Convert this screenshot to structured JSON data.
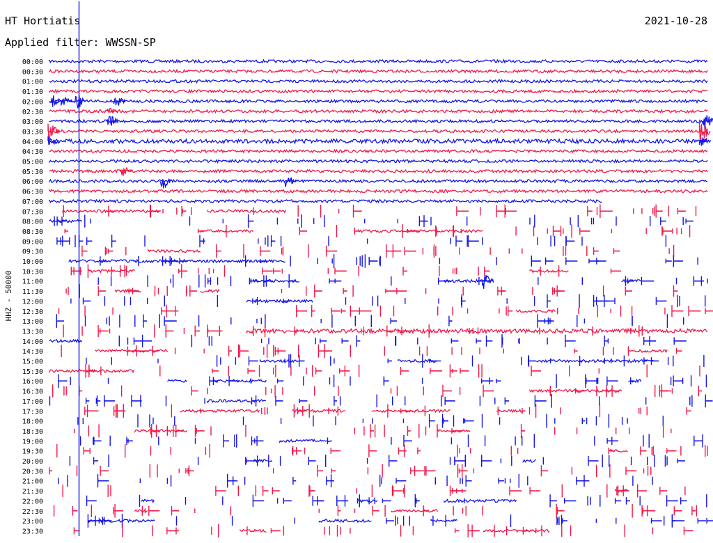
{
  "header": {
    "station": "HT Hortiatis",
    "date": "2021-10-28",
    "filter": "Applied filter: WWSSN-SP"
  },
  "y_axis_label": "HHZ - 50000",
  "colors": {
    "blue": "#1515e6",
    "red": "#f0184a",
    "background": "#ffffff"
  },
  "chart_data": {
    "type": "line",
    "title": "HT Hortiatis",
    "subtitle": "Applied filter: WWSSN-SP",
    "channel_label": "HHZ - 50000",
    "rows": [
      {
        "t": "00:00",
        "c": "blue",
        "a": 2,
        "s": [
          [
            0,
            1
          ]
        ]
      },
      {
        "t": "00:30",
        "c": "red",
        "a": 2,
        "s": [
          [
            0,
            1
          ]
        ]
      },
      {
        "t": "01:00",
        "c": "blue",
        "a": 2,
        "s": [
          [
            0,
            1
          ]
        ]
      },
      {
        "t": "01:30",
        "c": "red",
        "a": 2,
        "s": [
          [
            0,
            1
          ]
        ]
      },
      {
        "t": "02:00",
        "c": "blue",
        "a": 2,
        "s": [
          [
            0,
            1
          ]
        ],
        "e": [
          [
            0.005,
            9
          ],
          [
            0.02,
            7
          ],
          [
            0.04,
            14
          ],
          [
            0.1,
            9
          ]
        ]
      },
      {
        "t": "02:30",
        "c": "red",
        "a": 2,
        "s": [
          [
            0,
            1
          ]
        ],
        "e": [
          [
            0.09,
            5
          ]
        ]
      },
      {
        "t": "03:00",
        "c": "blue",
        "a": 2,
        "s": [
          [
            0,
            1
          ]
        ],
        "e": [
          [
            0.09,
            10
          ],
          [
            0.995,
            14
          ]
        ]
      },
      {
        "t": "03:30",
        "c": "red",
        "a": 2,
        "s": [
          [
            0,
            1
          ]
        ],
        "e": [
          [
            0.0,
            15
          ],
          [
            0.99,
            18
          ]
        ]
      },
      {
        "t": "04:00",
        "c": "blue",
        "a": 3,
        "s": [
          [
            0,
            1
          ]
        ],
        "e": [
          [
            0.0,
            8
          ],
          [
            0.99,
            9
          ]
        ]
      },
      {
        "t": "04:30",
        "c": "red",
        "a": 2,
        "s": [
          [
            0,
            1
          ]
        ]
      },
      {
        "t": "05:00",
        "c": "blue",
        "a": 2,
        "s": [
          [
            0,
            1
          ]
        ]
      },
      {
        "t": "05:30",
        "c": "red",
        "a": 2,
        "s": [
          [
            0,
            1
          ]
        ],
        "e": [
          [
            0.11,
            9
          ]
        ]
      },
      {
        "t": "06:00",
        "c": "blue",
        "a": 2,
        "s": [
          [
            0,
            1
          ]
        ],
        "e": [
          [
            0.17,
            14
          ],
          [
            0.36,
            8
          ]
        ]
      },
      {
        "t": "06:30",
        "c": "red",
        "a": 2,
        "s": [
          [
            0,
            1
          ]
        ]
      },
      {
        "t": "07:00",
        "c": "blue",
        "a": 2,
        "s": [
          [
            0,
            0.84
          ]
        ]
      },
      {
        "t": "07:30",
        "c": "red",
        "a": 2,
        "s": [
          [
            0.02,
            0.17
          ],
          [
            0.24,
            0.36
          ]
        ]
      },
      {
        "t": "08:00",
        "c": "blue",
        "a": 2,
        "s": [
          [
            0,
            0.05
          ]
        ]
      },
      {
        "t": "08:30",
        "c": "red",
        "a": 2,
        "s": [
          [
            0.23,
            0.31
          ],
          [
            0.47,
            0.66
          ]
        ]
      },
      {
        "t": "09:00",
        "c": "blue",
        "a": 2,
        "s": []
      },
      {
        "t": "09:30",
        "c": "red",
        "a": 2,
        "s": [
          [
            0.15,
            0.23
          ]
        ]
      },
      {
        "t": "10:00",
        "c": "blue",
        "a": 2,
        "s": [
          [
            0.03,
            0.36
          ]
        ]
      },
      {
        "t": "10:30",
        "c": "red",
        "a": 2,
        "s": [
          [
            0.06,
            0.13
          ],
          [
            0.73,
            0.79
          ]
        ]
      },
      {
        "t": "11:00",
        "c": "blue",
        "a": 2,
        "s": [
          [
            0.31,
            0.38
          ],
          [
            0.6,
            0.67
          ],
          [
            0.87,
            0.9
          ]
        ],
        "e": [
          [
            0.66,
            12
          ]
        ]
      },
      {
        "t": "11:30",
        "c": "red",
        "a": 2,
        "s": [
          [
            0.1,
            0.14
          ],
          [
            0.23,
            0.26
          ]
        ]
      },
      {
        "t": "12:00",
        "c": "blue",
        "a": 2,
        "s": [
          [
            0.3,
            0.4
          ]
        ]
      },
      {
        "t": "12:30",
        "c": "red",
        "a": 2,
        "s": [
          [
            0.71,
            0.77
          ]
        ]
      },
      {
        "t": "13:00",
        "c": "blue",
        "a": 2,
        "s": []
      },
      {
        "t": "13:30",
        "c": "red",
        "a": 3,
        "s": [
          [
            0.3,
            1
          ]
        ]
      },
      {
        "t": "14:00",
        "c": "blue",
        "a": 2,
        "s": [
          [
            0,
            0.05
          ]
        ]
      },
      {
        "t": "14:30",
        "c": "red",
        "a": 2,
        "s": [
          [
            0.07,
            0.18
          ],
          [
            0.88,
            0.94
          ]
        ]
      },
      {
        "t": "15:00",
        "c": "blue",
        "a": 2,
        "s": [
          [
            0.32,
            0.38
          ],
          [
            0.53,
            0.59
          ],
          [
            0.74,
            0.92
          ]
        ]
      },
      {
        "t": "15:30",
        "c": "red",
        "a": 2,
        "s": [
          [
            0,
            0.13
          ]
        ]
      },
      {
        "t": "16:00",
        "c": "blue",
        "a": 2,
        "s": [
          [
            0.18,
            0.21
          ],
          [
            0.25,
            0.33
          ],
          [
            0.88,
            0.9
          ]
        ]
      },
      {
        "t": "16:30",
        "c": "red",
        "a": 2,
        "s": [
          [
            0.73,
            0.87
          ]
        ]
      },
      {
        "t": "17:00",
        "c": "blue",
        "a": 2,
        "s": [
          [
            0.24,
            0.33
          ]
        ]
      },
      {
        "t": "17:30",
        "c": "red",
        "a": 2,
        "s": [
          [
            0.2,
            0.32
          ],
          [
            0.37,
            0.45
          ],
          [
            0.49,
            0.61
          ],
          [
            0.68,
            0.72
          ]
        ]
      },
      {
        "t": "18:00",
        "c": "blue",
        "a": 2,
        "s": []
      },
      {
        "t": "18:30",
        "c": "red",
        "a": 2,
        "s": [
          [
            0.13,
            0.21
          ],
          [
            0.59,
            0.64
          ]
        ]
      },
      {
        "t": "19:00",
        "c": "blue",
        "a": 2,
        "s": [
          [
            0.35,
            0.43
          ]
        ]
      },
      {
        "t": "19:30",
        "c": "red",
        "a": 2,
        "s": [
          [
            0.85,
            0.88
          ]
        ]
      },
      {
        "t": "20:00",
        "c": "blue",
        "a": 2,
        "s": [
          [
            0.31,
            0.34
          ],
          [
            0.72,
            0.74
          ]
        ]
      },
      {
        "t": "20:30",
        "c": "red",
        "a": 2,
        "s": []
      },
      {
        "t": "21:00",
        "c": "blue",
        "a": 2,
        "s": []
      },
      {
        "t": "21:30",
        "c": "red",
        "a": 2,
        "s": [
          [
            0.86,
            0.88
          ]
        ]
      },
      {
        "t": "22:00",
        "c": "blue",
        "a": 2,
        "s": [
          [
            0.14,
            0.16
          ],
          [
            0.47,
            0.5
          ],
          [
            0.6,
            0.71
          ]
        ]
      },
      {
        "t": "22:30",
        "c": "red",
        "a": 2,
        "s": [
          [
            0.13,
            0.15
          ],
          [
            0.52,
            0.59
          ]
        ]
      },
      {
        "t": "23:00",
        "c": "blue",
        "a": 2,
        "s": [
          [
            0.06,
            0.16
          ],
          [
            0.41,
            0.49
          ],
          [
            0.58,
            0.62
          ]
        ]
      },
      {
        "t": "23:30",
        "c": "red",
        "a": 2,
        "s": [
          [
            0.29,
            0.33
          ],
          [
            0.66,
            0.76
          ]
        ]
      }
    ],
    "big_spike": {
      "row": "02:00",
      "x": 0.045
    }
  }
}
